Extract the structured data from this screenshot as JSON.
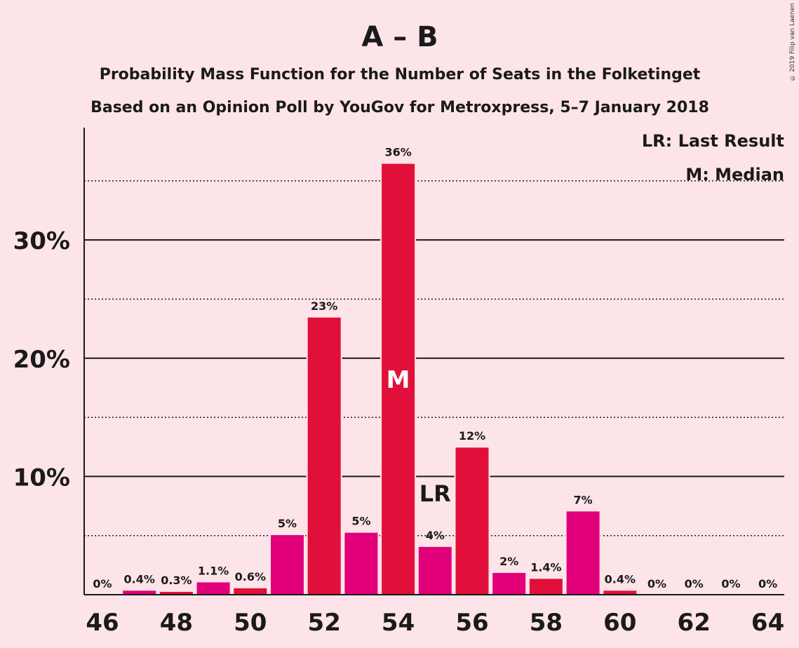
{
  "chart_data": {
    "type": "bar",
    "title": "A – B",
    "subtitle_line1": "Probability Mass Function for the Number of Seats in the Folketinget",
    "subtitle_line2": "Based on an Opinion Poll by YouGov for Metroxpress, 5–7 January 2018",
    "copyright": "© 2019 Filip van Laenen",
    "legend": {
      "lr": "LR: Last Result",
      "m": "M: Median",
      "placement": "top-right"
    },
    "markers": {
      "median_label": "M",
      "median_seat": 54,
      "last_result_label": "LR",
      "last_result_seat": 55
    },
    "x_tick_labels": [
      "46",
      "48",
      "50",
      "52",
      "54",
      "56",
      "58",
      "60",
      "62",
      "64"
    ],
    "y_tick_labels": [
      "10%",
      "20%",
      "30%"
    ],
    "ylim": [
      0,
      0.395
    ],
    "major_gridlines": [
      0.1,
      0.2,
      0.3
    ],
    "minor_gridlines": [
      0.05,
      0.15,
      0.25,
      0.35
    ],
    "colors": {
      "background": "#FDE4E8",
      "bar_primary": "#E0103A",
      "bar_secondary": "#E2007A",
      "text": "#1a1a1a"
    },
    "seats": [
      46,
      47,
      48,
      49,
      50,
      51,
      52,
      53,
      54,
      55,
      56,
      57,
      58,
      59,
      60,
      61,
      62,
      63,
      64
    ],
    "values": [
      0,
      0.004,
      0.003,
      0.011,
      0.006,
      0.051,
      0.235,
      0.053,
      0.365,
      0.041,
      0.125,
      0.019,
      0.014,
      0.071,
      0.004,
      0,
      0,
      0,
      0
    ],
    "data_labels": [
      "0%",
      "0.4%",
      "0.3%",
      "1.1%",
      "0.6%",
      "5%",
      "23%",
      "5%",
      "36%",
      "4%",
      "12%",
      "2%",
      "1.4%",
      "7%",
      "0.4%",
      "0%",
      "0%",
      "0%",
      "0%"
    ]
  }
}
